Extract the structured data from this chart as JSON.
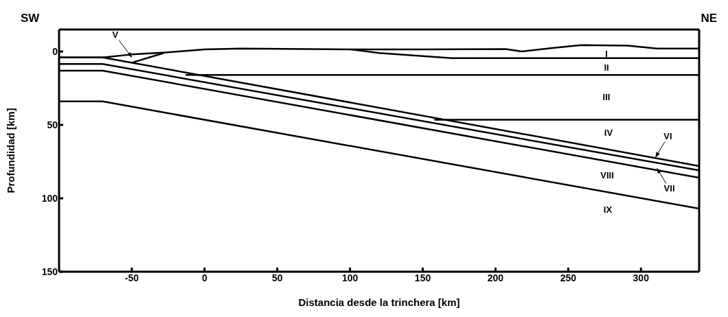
{
  "chart_data": {
    "type": "line",
    "xlabel": "Distancia desde la trinchera [km]",
    "ylabel": "Profundidad [km]",
    "xlim": [
      -100,
      340
    ],
    "ylim": [
      150,
      -15
    ],
    "xticks": [
      -50,
      0,
      50,
      100,
      150,
      200,
      250,
      300
    ],
    "yticks": [
      0,
      50,
      100,
      150
    ],
    "marker": "none",
    "line_style": "solid",
    "series": [
      {
        "color": "#000000",
        "x": [
          -100,
          -70,
          -50,
          -25,
          0,
          25,
          100,
          150,
          207,
          218,
          240,
          259,
          291,
          311,
          340
        ],
        "values": [
          4,
          4,
          2,
          0.5,
          -1.5,
          -2,
          -1.5,
          -1.5,
          -1.7,
          0,
          -2.5,
          -4.4,
          -4,
          -2,
          -2
        ]
      },
      {
        "color": "#000000",
        "x": [
          100,
          120,
          170,
          340
        ],
        "values": [
          -1.5,
          1,
          4.5,
          4.5
        ]
      },
      {
        "color": "#000000",
        "x": [
          -13,
          340
        ],
        "values": [
          16,
          16
        ]
      },
      {
        "color": "#000000",
        "x": [
          158,
          340
        ],
        "values": [
          46.5,
          46.5
        ]
      },
      {
        "color": "#000000",
        "x": [
          -100,
          -70,
          340
        ],
        "values": [
          4,
          4,
          78
        ]
      },
      {
        "color": "#000000",
        "x": [
          -50,
          -28
        ],
        "values": [
          7.6,
          1
        ]
      },
      {
        "color": "#000000",
        "x": [
          -100,
          -70,
          340
        ],
        "values": [
          8.5,
          8.5,
          81
        ]
      },
      {
        "color": "#000000",
        "x": [
          -100,
          -70,
          340
        ],
        "values": [
          13,
          13,
          86
        ]
      },
      {
        "color": "#000000",
        "x": [
          -100,
          -70,
          340
        ],
        "values": [
          34,
          34,
          107
        ]
      }
    ],
    "annotations": [
      "SW",
      "NE",
      "I",
      "II",
      "III",
      "IV",
      {
        "text": "V",
        "x": -50,
        "y": 4
      },
      {
        "text": "VI",
        "x": 310,
        "y": 72
      },
      {
        "text": "VII",
        "x": 311,
        "y": 79.5
      },
      "VIII",
      "IX"
    ]
  }
}
